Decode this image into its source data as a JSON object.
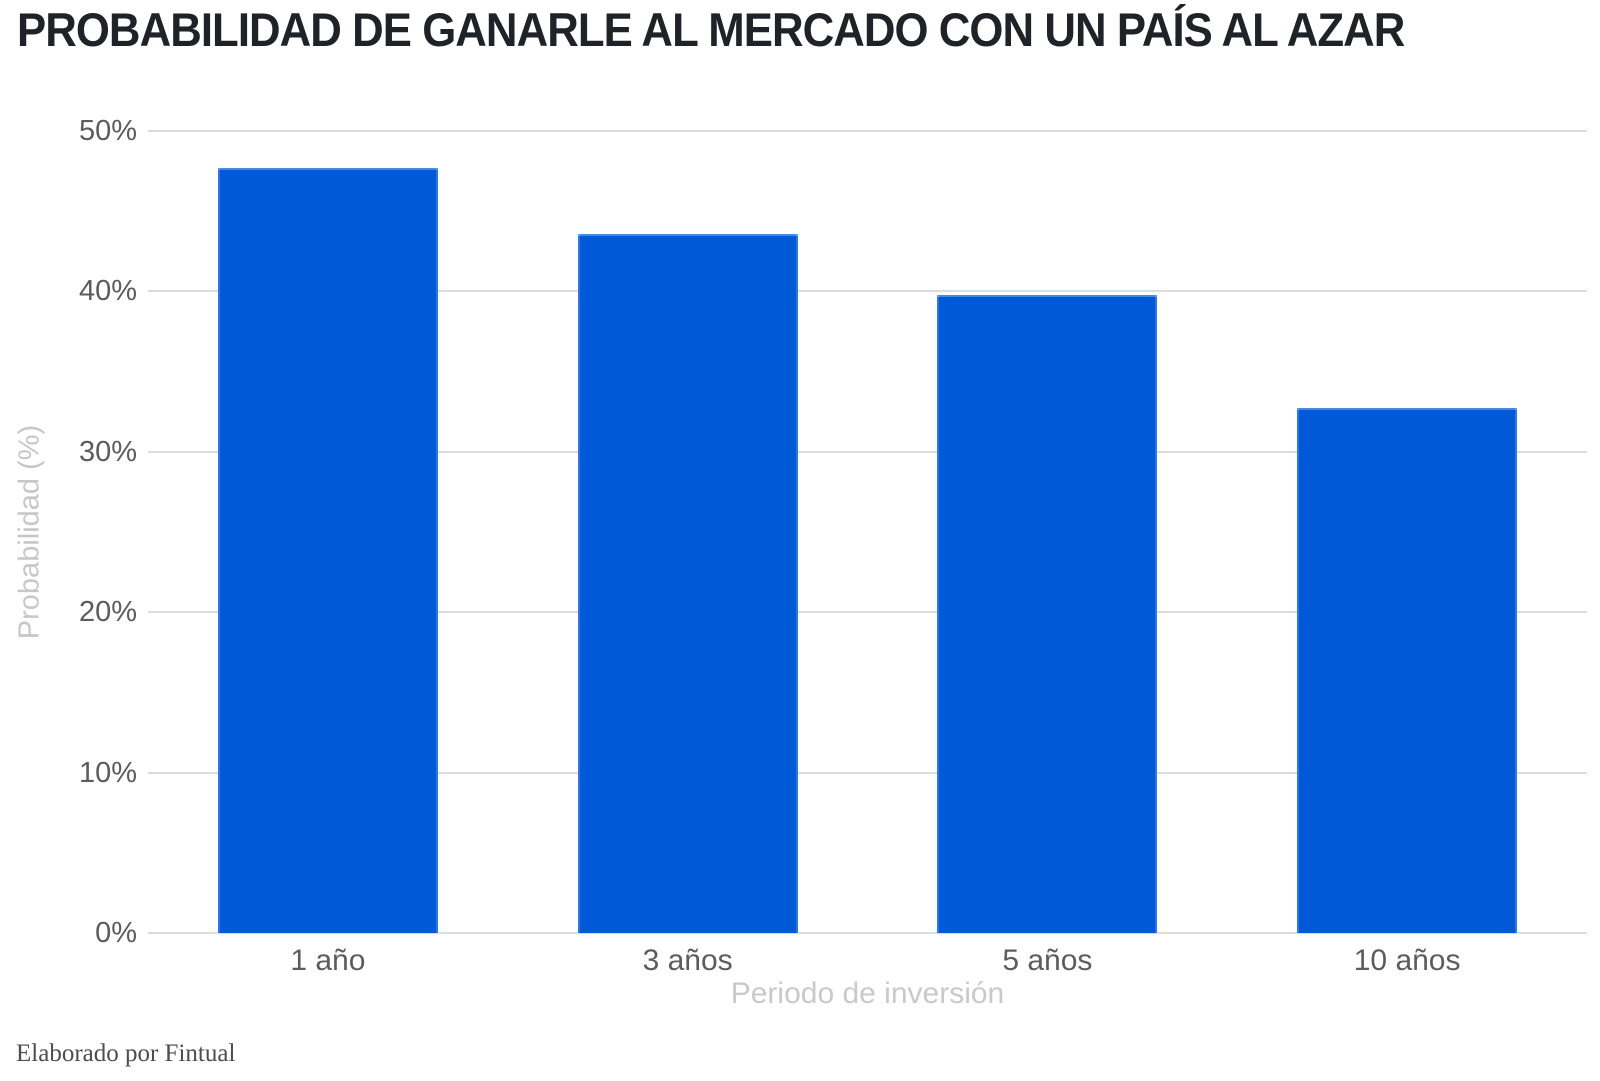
{
  "page": {
    "footer": "Elaborado por Fintual"
  },
  "chart_data": {
    "type": "bar",
    "title": "PROBABILIDAD DE GANARLE AL MERCADO CON UN PAÍS AL AZAR",
    "categories": [
      "1 año",
      "3 años",
      "5 años",
      "10 años"
    ],
    "values": [
      47.7,
      43.6,
      39.8,
      32.7
    ],
    "xlabel": "Periodo de inversión",
    "ylabel": "Probabilidad (%)",
    "ylim": [
      0,
      50
    ],
    "yticks": [
      0,
      10,
      20,
      30,
      40,
      50
    ],
    "ytick_labels": [
      "0%",
      "10%",
      "20%",
      "30%",
      "40%",
      "50%"
    ],
    "grid": "horizontal-only",
    "legend": "none",
    "bar_color": "#005AD8",
    "units": "percent"
  },
  "colors": {
    "background": "#ffffff",
    "bar": "#005AD8",
    "gridline": "#dcdcdc",
    "title_text": "#1f2226",
    "tick_text": "#5c5c5c",
    "axis_title_text": "#c8c8c8",
    "footer_text": "#4d4d4d"
  }
}
